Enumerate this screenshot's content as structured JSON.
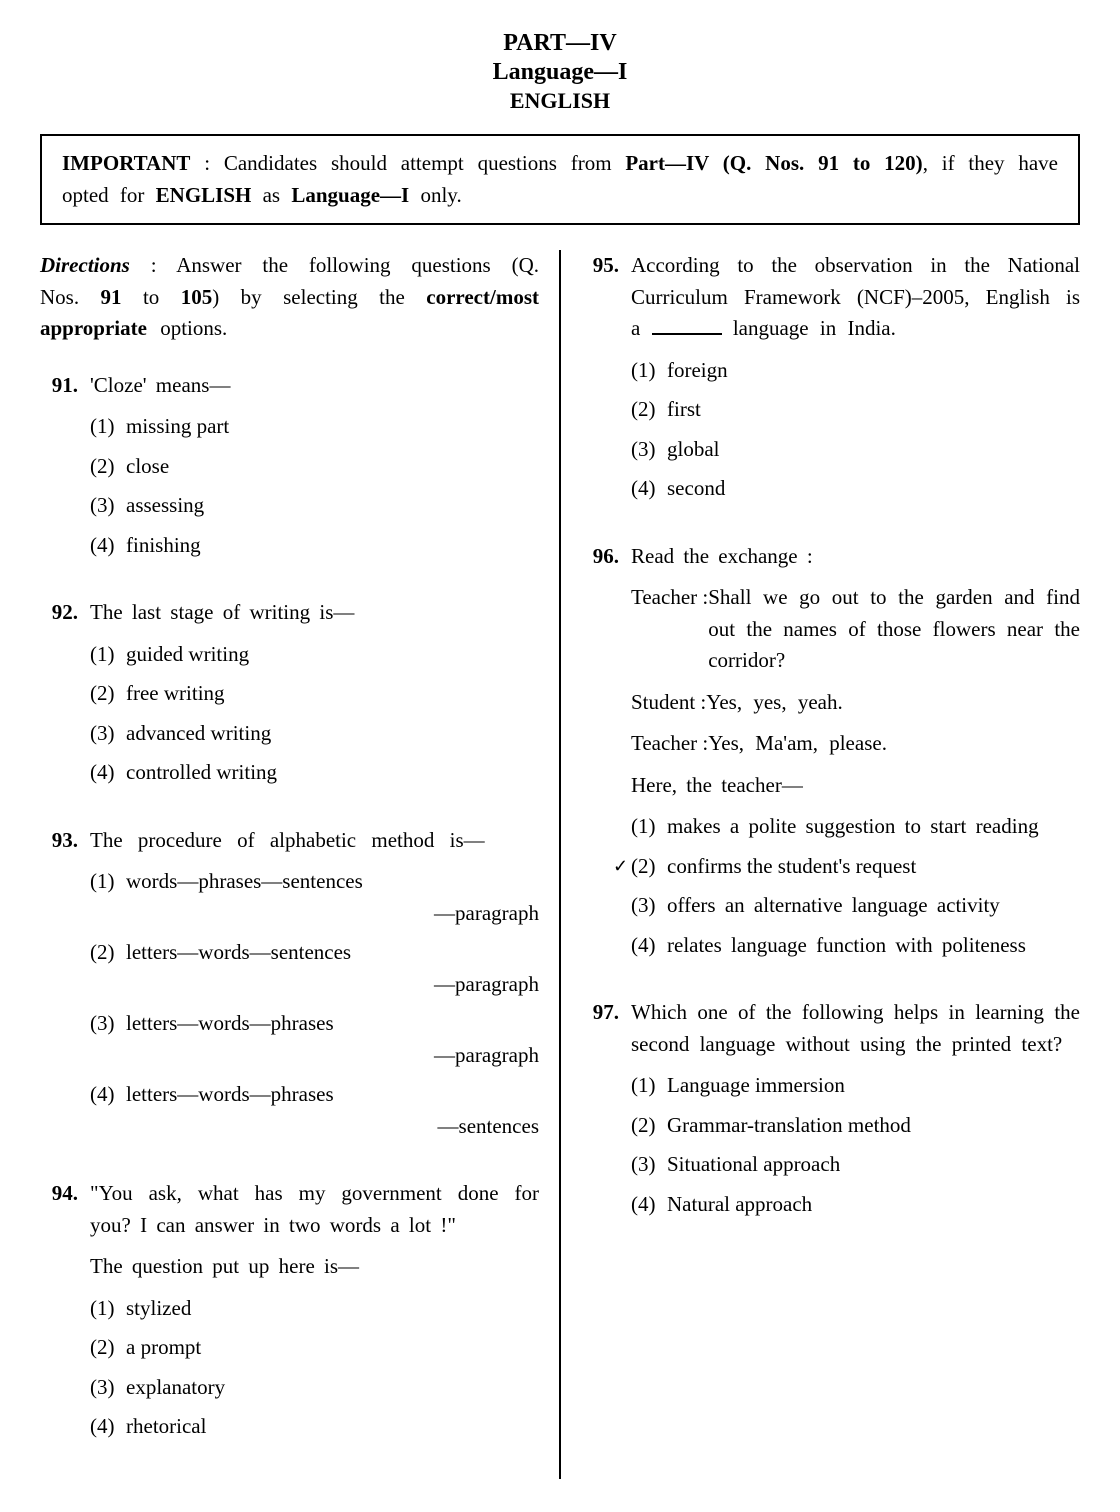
{
  "header": {
    "part": "PART—IV",
    "lang": "Language—I",
    "subject": "ENGLISH"
  },
  "important": {
    "label": "IMPORTANT",
    "text1": " : Candidates should attempt questions from ",
    "bold1": "Part—IV (Q. Nos. 91 to 120)",
    "text2": ", if they have opted for ",
    "bold2": "ENGLISH",
    "text3": " as ",
    "bold3": "Language—I",
    "text4": " only."
  },
  "directions": {
    "label": "Directions",
    "text1": " : Answer the following questions (Q. Nos. ",
    "bold1": "91",
    "text2": " to ",
    "bold2": "105",
    "text3": ") by selecting the ",
    "bold3": "correct/most appropriate",
    "text4": " options."
  },
  "q91": {
    "num": "91.",
    "text": "'Cloze' means—",
    "o1": "missing part",
    "o2": "close",
    "o3": "assessing",
    "o4": "finishing"
  },
  "q92": {
    "num": "92.",
    "text": "The last stage of writing is—",
    "o1": "guided writing",
    "o2": "free writing",
    "o3": "advanced writing",
    "o4": "controlled writing"
  },
  "q93": {
    "num": "93.",
    "text": "The procedure of alphabetic method is—",
    "o1a": "words—phrases—sentences",
    "o1b": "—paragraph",
    "o2a": "letters—words—sentences",
    "o2b": "—paragraph",
    "o3a": "letters—words—phrases",
    "o3b": "—paragraph",
    "o4a": "letters—words—phrases",
    "o4b": "—sentences"
  },
  "q94": {
    "num": "94.",
    "text1": "\"You ask, what has my government done for you? I can answer in two words a lot !\"",
    "text2": "The question put up here is—",
    "o1": "stylized",
    "o2": "a prompt",
    "o3": "explanatory",
    "o4": "rhetorical"
  },
  "q95": {
    "num": "95.",
    "text1": "According to the observation in the National Curriculum Framework (NCF)–2005, English is a ",
    "text2": " language in India.",
    "o1": "foreign",
    "o2": "first",
    "o3": "global",
    "o4": "second"
  },
  "q96": {
    "num": "96.",
    "text": "Read the exchange :",
    "sp1": "Teacher : ",
    "dl1": "Shall we go out to the garden and find out the names of those flowers near the corridor?",
    "sp2": "Student : ",
    "dl2": "Yes, yes, yeah.",
    "sp3": "Teacher : ",
    "dl3": "Yes, Ma'am, please.",
    "text2": "Here, the teacher—",
    "o1": "makes a polite suggestion to start reading",
    "o2": "confirms the student's request",
    "o3": "offers an alternative language activity",
    "o4": "relates language function with politeness"
  },
  "q97": {
    "num": "97.",
    "text": "Which one of the following helps in learning the second language without using the printed text?",
    "o1": "Language immersion",
    "o2": "Grammar-translation method",
    "o3": "Situational approach",
    "o4": "Natural approach"
  },
  "labels": {
    "n1": "(1)",
    "n2": "(2)",
    "n3": "(3)",
    "n4": "(4)"
  }
}
